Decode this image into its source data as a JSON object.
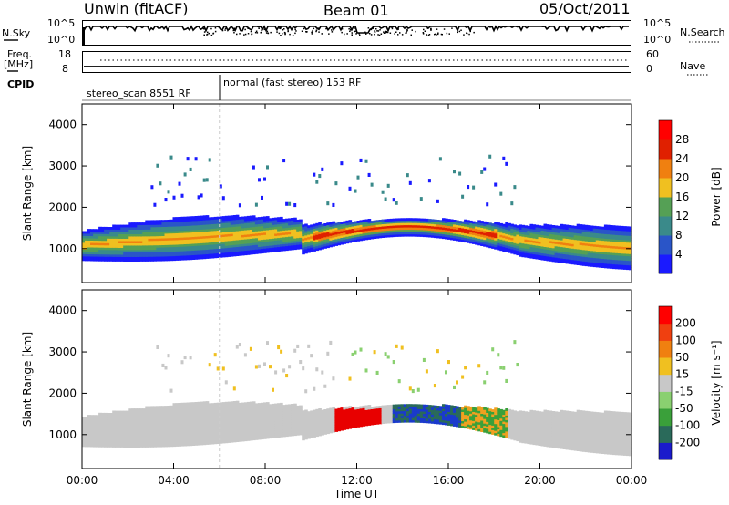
{
  "header": {
    "station": "Unwin (fitACF)",
    "beam": "Beam 01",
    "date": "05/Oct/2011"
  },
  "top_panels": {
    "nsky_label": "N.Sky",
    "nsky_ticks": [
      "10^5",
      "10^0"
    ],
    "nsearch_label": "N.Search",
    "nsearch_ticks": [
      "10^5",
      "10^0"
    ],
    "freq_label": "Freq.",
    "freq_unit": "[MHz]",
    "freq_ticks": [
      "18",
      "8"
    ],
    "nave_label": "Nave",
    "nave_ticks": [
      "60",
      "0"
    ],
    "cpid_label": "CPID",
    "cpid_segments": [
      "stereo_scan 8551 RF",
      "normal (fast stereo) 153 RF"
    ]
  },
  "chart_data": [
    {
      "type": "heatmap",
      "parameter": "power",
      "ylabel": "Slant Range [km]",
      "xlabel": "",
      "y_ticks": [
        1000,
        2000,
        3000,
        4000
      ],
      "ylim": [
        180,
        4500
      ],
      "x_ticks": [
        "00:00",
        "04:00",
        "08:00",
        "12:00",
        "16:00",
        "20:00",
        "00:00"
      ],
      "xlim_hours": [
        0,
        24
      ],
      "colorbar_label": "Power [dB]",
      "colorbar_ticks": [
        4,
        8,
        12,
        16,
        20,
        24,
        28
      ],
      "colorbar_colors": [
        "#1a1aff",
        "#2a55c8",
        "#3a8a8a",
        "#55a055",
        "#f0c020",
        "#f08010",
        "#e02000",
        "#ff0000"
      ]
    },
    {
      "type": "heatmap",
      "parameter": "velocity",
      "ylabel": "Slant Range [km]",
      "xlabel": "Time UT",
      "y_ticks": [
        1000,
        2000,
        3000,
        4000
      ],
      "ylim": [
        180,
        4500
      ],
      "x_ticks": [
        "00:00",
        "04:00",
        "08:00",
        "12:00",
        "16:00",
        "20:00",
        "00:00"
      ],
      "xlim_hours": [
        0,
        24
      ],
      "colorbar_label": "Velocity [m s⁻¹]",
      "colorbar_ticks": [
        200,
        100,
        50,
        15,
        -15,
        -50,
        -100,
        -200
      ],
      "colorbar_colors": [
        "#1a1acc",
        "#2a6a5a",
        "#3aa03a",
        "#8ad070",
        "#c8c8c8",
        "#f0c020",
        "#f08010",
        "#f04010",
        "#ff0000"
      ]
    }
  ]
}
